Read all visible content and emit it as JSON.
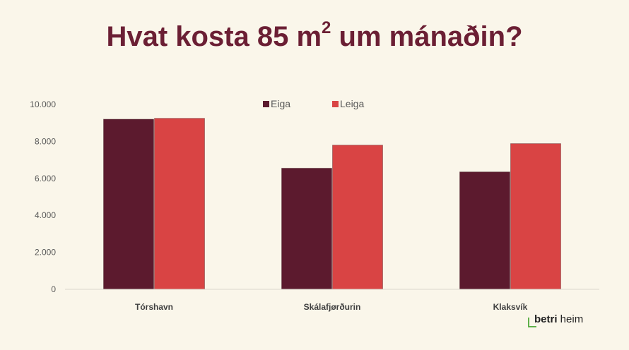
{
  "title": {
    "main": "Hvat kosta 85 m",
    "superscript": "2",
    "suffix": " um mánaðin?"
  },
  "colors": {
    "title": "#6b1f34",
    "eiga": "#5c1a2e",
    "leiga": "#d94444",
    "axis_text": "#595959",
    "background": "#faf6ea",
    "brand_mark": "#5fb04a"
  },
  "brand": {
    "bold": "betri",
    "rest": " heim"
  },
  "chart_data": {
    "type": "bar",
    "categories": [
      "Tórshavn",
      "Skálafjørðurin",
      "Klaksvík"
    ],
    "series": [
      {
        "name": "Eiga",
        "values": [
          9200,
          6550,
          6350
        ]
      },
      {
        "name": "Leiga",
        "values": [
          9250,
          7800,
          7880
        ]
      }
    ],
    "ylim": [
      0,
      10000
    ],
    "yticks": [
      0,
      2000,
      4000,
      6000,
      8000,
      10000
    ],
    "ytick_labels": [
      "0",
      "2.000",
      "4.000",
      "6.000",
      "8.000",
      "10.000"
    ],
    "legend_position": "top",
    "grid": false
  }
}
